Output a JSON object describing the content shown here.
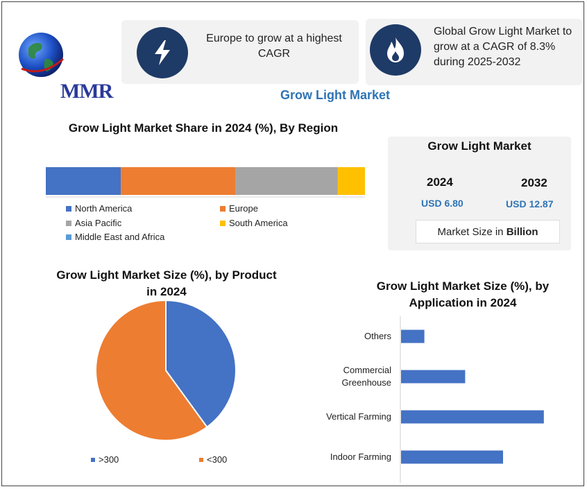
{
  "logo": {
    "text": "MMR"
  },
  "cards": [
    {
      "icon": "lightning-icon",
      "text": "Europe to grow at a highest CAGR"
    },
    {
      "icon": "flame-icon",
      "text": "Global Grow Light Market to grow at a CAGR of 8.3% during 2025-2032"
    }
  ],
  "main_title": "Grow Light Market",
  "market_size": {
    "title": "Grow Light Market",
    "years": [
      {
        "year": "2024",
        "value": "USD 6.80"
      },
      {
        "year": "2032",
        "value": "USD 12.87"
      }
    ],
    "unit_prefix": "Market Size in ",
    "unit_bold": "Billion"
  },
  "colors": {
    "blue": "#4472c4",
    "orange": "#ed7d31",
    "gray": "#a5a5a5",
    "yellow": "#ffc000",
    "lightblue": "#5b9bd5",
    "accent": "#2e74b5",
    "icon_bg": "#1e3a66"
  },
  "chart_data": [
    {
      "type": "bar",
      "orientation": "horizontal-stacked",
      "title": "Grow Light Market Share in 2024 (%), By Region",
      "series": [
        {
          "name": "North America",
          "values": [
            23.5
          ]
        },
        {
          "name": "Europe",
          "values": [
            36
          ]
        },
        {
          "name": "Asia Pacific",
          "values": [
            32
          ]
        },
        {
          "name": "South America",
          "values": [
            8.5
          ]
        },
        {
          "name": "Middle East and Africa",
          "values": [
            0
          ]
        }
      ],
      "legend": "bottom"
    },
    {
      "type": "pie",
      "title_line1": "Grow Light Market Size (%), by Product",
      "title_line2": "in 2024",
      "labels": [
        ">300",
        "<300"
      ],
      "values": [
        40,
        60
      ],
      "legend": "bottom"
    },
    {
      "type": "bar",
      "orientation": "horizontal",
      "title_line1": "Grow Light Market Size (%), by",
      "title_line2": "Application in 2024",
      "categories": [
        "Others",
        "Commercial Greenhouse",
        "Vertical Farming",
        "Indoor Farming"
      ],
      "category_lines": [
        [
          "Others"
        ],
        [
          "Commercial",
          "Greenhouse"
        ],
        [
          "Vertical Farming"
        ],
        [
          "Indoor Farming"
        ]
      ],
      "values": [
        8,
        22,
        49,
        35
      ],
      "xlim": [
        0,
        50
      ],
      "grid": false
    }
  ]
}
